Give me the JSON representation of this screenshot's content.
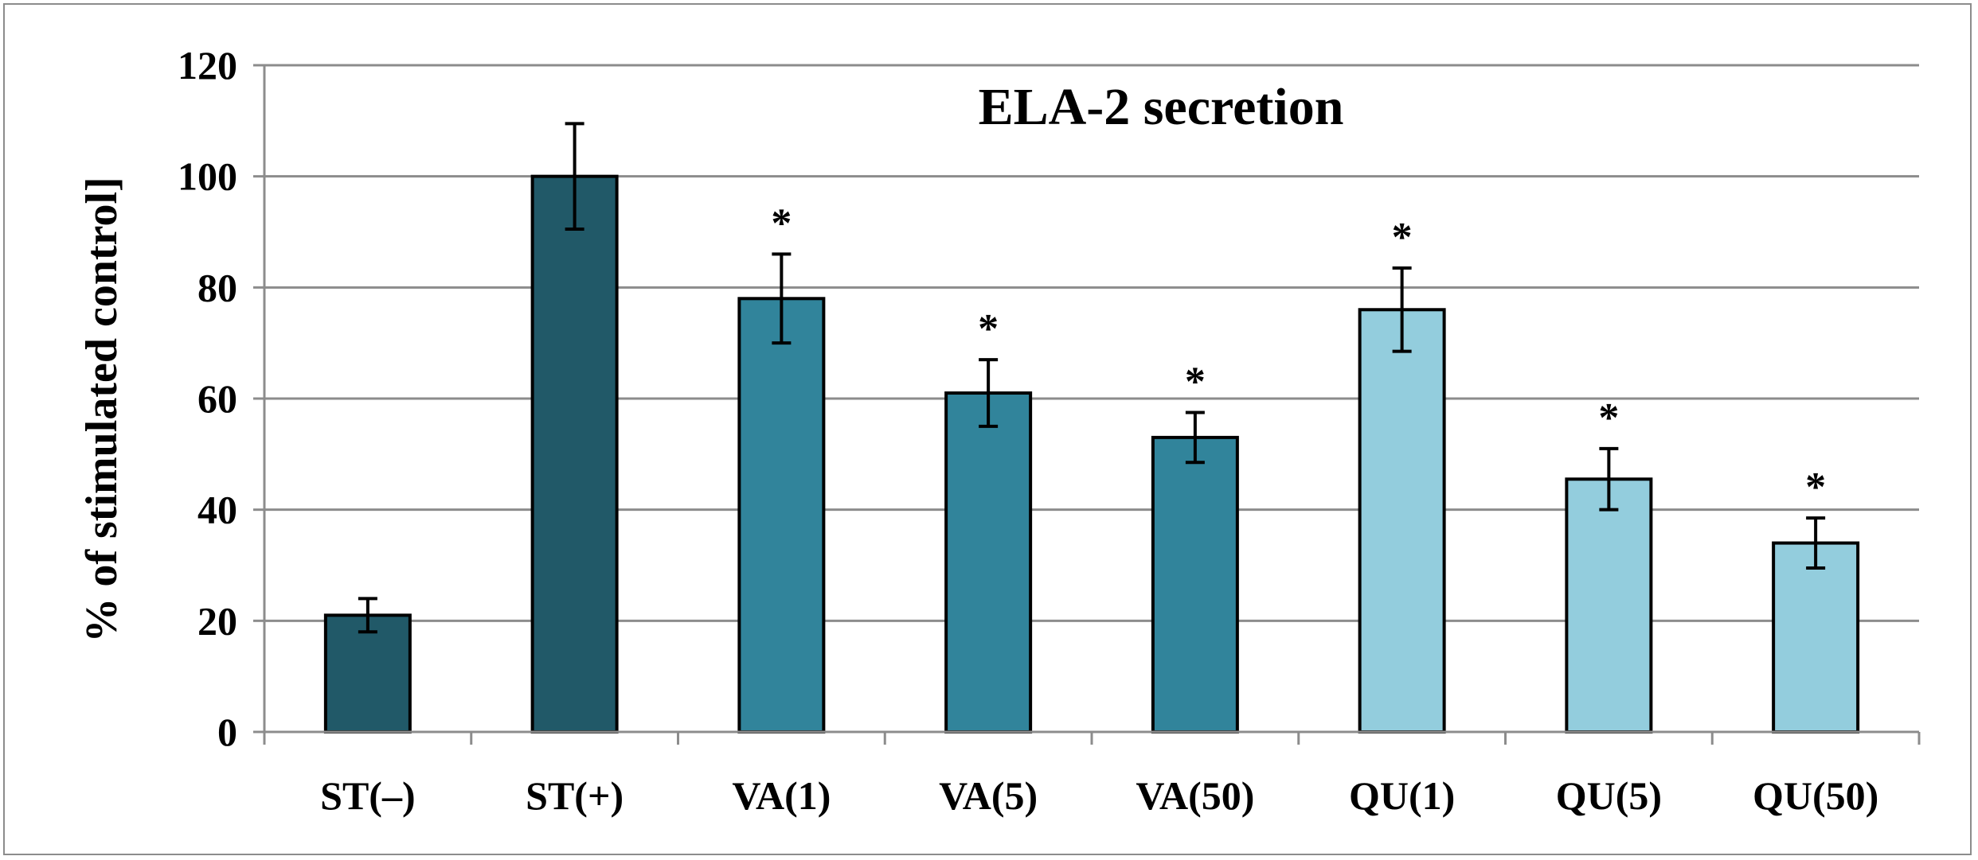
{
  "chart_data": {
    "type": "bar",
    "title": "ELA-2 secretion",
    "xlabel": "",
    "ylabel": "% of stimulated control]",
    "ylim": [
      0,
      120
    ],
    "yticks": [
      0,
      20,
      40,
      60,
      80,
      100,
      120
    ],
    "ytick_labels": [
      "0",
      "20",
      "40",
      "60",
      "80",
      "100",
      "120"
    ],
    "grid": true,
    "categories": [
      "ST(–)",
      "ST(+)",
      "VA(1)",
      "VA(5)",
      "VA(50)",
      "QU(1)",
      "QU(5)",
      "QU(50)"
    ],
    "values": [
      21,
      100,
      78,
      61,
      53,
      76,
      45.5,
      34
    ],
    "errors": [
      3,
      9.5,
      8,
      6,
      4.5,
      7.5,
      5.5,
      4.5
    ],
    "significance": [
      "",
      "",
      "*",
      "*",
      "*",
      "*",
      "*",
      "*"
    ],
    "bar_colors": [
      "#215968",
      "#215968",
      "#31849b",
      "#31849b",
      "#31849b",
      "#93cddd",
      "#93cddd",
      "#93cddd"
    ]
  }
}
